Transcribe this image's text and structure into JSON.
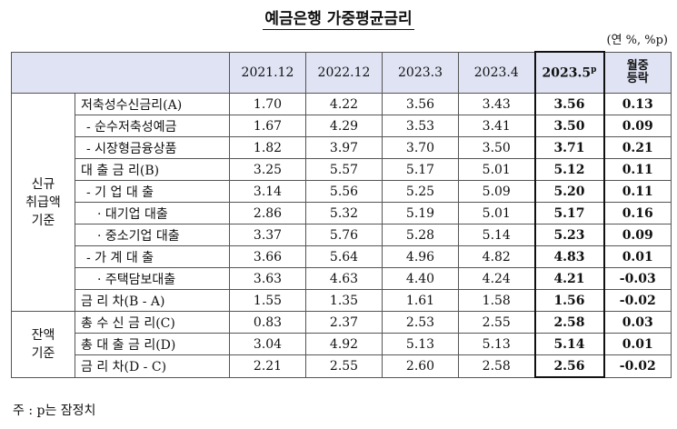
{
  "title": "예금은행 가중평균금리",
  "unit": "(연 %, %p)",
  "columns": [
    "2021.12",
    "2022.12",
    "2023.3",
    "2023.4",
    "2023.5",
    "월중"
  ],
  "highlight_suffix": "p",
  "change_line2": "등락",
  "groups": [
    {
      "label_line1": "신규",
      "label_line2": "취급액",
      "label_line3": "기준",
      "rows": [
        {
          "label": "저축성수신금리(A)",
          "values": [
            "1.70",
            "4.22",
            "3.56",
            "3.43",
            "3.56",
            "0.13"
          ]
        },
        {
          "label": "- 순수저축성예금",
          "values": [
            "1.67",
            "4.29",
            "3.53",
            "3.41",
            "3.50",
            "0.09"
          ]
        },
        {
          "label": "- 시장형금융상품",
          "values": [
            "1.82",
            "3.97",
            "3.70",
            "3.50",
            "3.71",
            "0.21"
          ]
        },
        {
          "label": "대 출 금 리(B)",
          "values": [
            "3.25",
            "5.57",
            "5.17",
            "5.01",
            "5.12",
            "0.11"
          ]
        },
        {
          "label": "- 기 업 대 출",
          "values": [
            "3.14",
            "5.56",
            "5.25",
            "5.09",
            "5.20",
            "0.11"
          ]
        },
        {
          "label": "· 대기업 대출",
          "values": [
            "2.86",
            "5.32",
            "5.19",
            "5.01",
            "5.17",
            "0.16"
          ]
        },
        {
          "label": "· 중소기업 대출",
          "values": [
            "3.37",
            "5.76",
            "5.28",
            "5.14",
            "5.23",
            "0.09"
          ]
        },
        {
          "label": "- 가 계 대 출",
          "values": [
            "3.66",
            "5.64",
            "4.96",
            "4.82",
            "4.83",
            "0.01"
          ]
        },
        {
          "label": "· 주택담보대출",
          "values": [
            "3.63",
            "4.63",
            "4.40",
            "4.24",
            "4.21",
            "-0.03"
          ]
        },
        {
          "label": "금 리 차(B - A)",
          "values": [
            "1.55",
            "1.35",
            "1.61",
            "1.58",
            "1.56",
            "-0.02"
          ]
        }
      ]
    },
    {
      "label_line1": "잔액",
      "label_line2": "기준",
      "rows": [
        {
          "label": "총 수 신 금 리(C)",
          "values": [
            "0.83",
            "2.37",
            "2.53",
            "2.55",
            "2.58",
            "0.03"
          ]
        },
        {
          "label": "총 대 출 금 리(D)",
          "values": [
            "3.04",
            "4.92",
            "5.13",
            "5.13",
            "5.14",
            "0.01"
          ]
        },
        {
          "label": "금 리 차(D - C)",
          "values": [
            "2.21",
            "2.55",
            "2.60",
            "2.58",
            "2.56",
            "-0.02"
          ]
        }
      ]
    }
  ],
  "note": "주 : p는 잠정치"
}
